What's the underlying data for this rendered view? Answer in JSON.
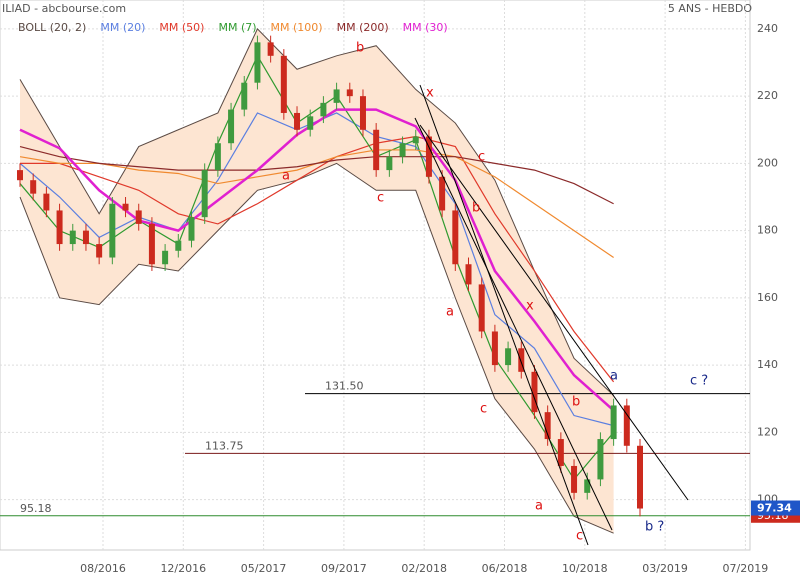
{
  "chart_data": {
    "type": "candlestick",
    "title": "ILIAD - abcbourse.com",
    "subtitle": "5 ANS - HEBDO",
    "x_labels": [
      "08/2016",
      "12/2016",
      "05/2017",
      "09/2017",
      "02/2018",
      "06/2018",
      "10/2018",
      "03/2019",
      "07/2019"
    ],
    "ylim": [
      85,
      248.6
    ],
    "yticks": [
      100,
      120,
      140,
      160,
      180,
      200,
      220,
      240
    ],
    "grid": true,
    "candles": {
      "up_color": "#3f9a3f",
      "down_color": "#cc2a1e",
      "open": [
        198,
        195,
        191,
        186,
        176,
        180,
        176,
        172,
        188,
        186,
        182,
        170,
        174,
        177,
        184,
        198,
        206,
        216,
        224,
        236,
        232,
        215,
        210,
        214,
        218,
        222,
        220,
        210,
        198,
        202,
        206,
        208,
        196,
        186,
        170,
        164,
        150,
        140,
        145,
        138,
        126,
        118,
        110,
        102,
        106,
        118,
        128,
        116
      ],
      "high": [
        200,
        197,
        193,
        188,
        182,
        182,
        178,
        190,
        190,
        188,
        184,
        176,
        179,
        186,
        200,
        208,
        218,
        226,
        238,
        238,
        234,
        217,
        216,
        220,
        224,
        224,
        222,
        212,
        204,
        208,
        210,
        210,
        198,
        188,
        172,
        166,
        152,
        147,
        147,
        140,
        128,
        120,
        112,
        108,
        120,
        130,
        130,
        118
      ],
      "low": [
        193,
        189,
        184,
        174,
        174,
        174,
        170,
        170,
        184,
        180,
        168,
        168,
        172,
        175,
        182,
        196,
        204,
        214,
        222,
        230,
        213,
        208,
        208,
        212,
        216,
        218,
        208,
        196,
        196,
        200,
        204,
        194,
        184,
        168,
        162,
        148,
        138,
        138,
        136,
        124,
        116,
        108,
        100,
        100,
        104,
        116,
        114,
        95
      ],
      "close": [
        195,
        191,
        186,
        176,
        180,
        176,
        172,
        188,
        186,
        182,
        170,
        174,
        177,
        184,
        198,
        206,
        216,
        224,
        236,
        232,
        215,
        210,
        214,
        218,
        222,
        220,
        210,
        198,
        202,
        206,
        208,
        196,
        186,
        170,
        164,
        150,
        140,
        145,
        138,
        126,
        118,
        110,
        102,
        106,
        118,
        128,
        116,
        97.34
      ]
    },
    "bollinger": {
      "name": "BOLL (20, 2)",
      "color": "#5a4a44",
      "fill": "#fde5d2",
      "upper": [
        225,
        205,
        185,
        205,
        210,
        215,
        240,
        228,
        232,
        235,
        222,
        212,
        195,
        168,
        142,
        131
      ],
      "lower": [
        190,
        160,
        158,
        170,
        168,
        180,
        192,
        195,
        200,
        192,
        192,
        160,
        130,
        115,
        95,
        90
      ]
    },
    "series": [
      {
        "name": "MM (20)",
        "color": "#5b7fe0",
        "values": [
          200,
          190,
          178,
          184,
          180,
          195,
          215,
          210,
          215,
          208,
          205,
          188,
          155,
          145,
          125,
          122
        ]
      },
      {
        "name": "MM (50)",
        "color": "#e0392b",
        "values": [
          200,
          200,
          196,
          192,
          185,
          182,
          188,
          195,
          202,
          206,
          208,
          205,
          185,
          168,
          150,
          135
        ]
      },
      {
        "name": "MM (7)",
        "color": "#2f9a2f",
        "values": [
          194,
          180,
          175,
          183,
          176,
          206,
          232,
          212,
          220,
          202,
          207,
          172,
          142,
          125,
          106,
          120
        ]
      },
      {
        "name": "MM (100)",
        "color": "#f08a30",
        "values": [
          202,
          200,
          200,
          198,
          197,
          194,
          196,
          198,
          202,
          204,
          204,
          202,
          196,
          188,
          180,
          172
        ]
      },
      {
        "name": "MM (200)",
        "color": "#8b2a2a",
        "values": [
          205,
          202,
          200,
          199,
          198,
          198,
          198,
          199,
          201,
          202,
          202,
          202,
          200,
          198,
          194,
          188
        ]
      },
      {
        "name": "MM (30)",
        "color": "#e020d0",
        "values": [
          210,
          204.5,
          192,
          183,
          180,
          189,
          198,
          208.5,
          216,
          216,
          211,
          195,
          168,
          153,
          137,
          126.5
        ]
      }
    ],
    "levels": [
      {
        "value": 131.5,
        "label": "131.50",
        "color": "#000000"
      },
      {
        "value": 113.75,
        "label": "113.75",
        "color": "#7a1a1a"
      },
      {
        "value": 95.18,
        "label": "95.18",
        "color": "#2e8b2e"
      }
    ],
    "last_price": {
      "value": 97.34,
      "label": "97.34"
    },
    "annotations": {
      "red": [
        "b",
        "a",
        "c",
        "x",
        "c",
        "b",
        "a",
        "x",
        "c",
        "b",
        "a",
        "c"
      ],
      "blue": [
        "a",
        "c ?",
        "b ?"
      ]
    }
  }
}
